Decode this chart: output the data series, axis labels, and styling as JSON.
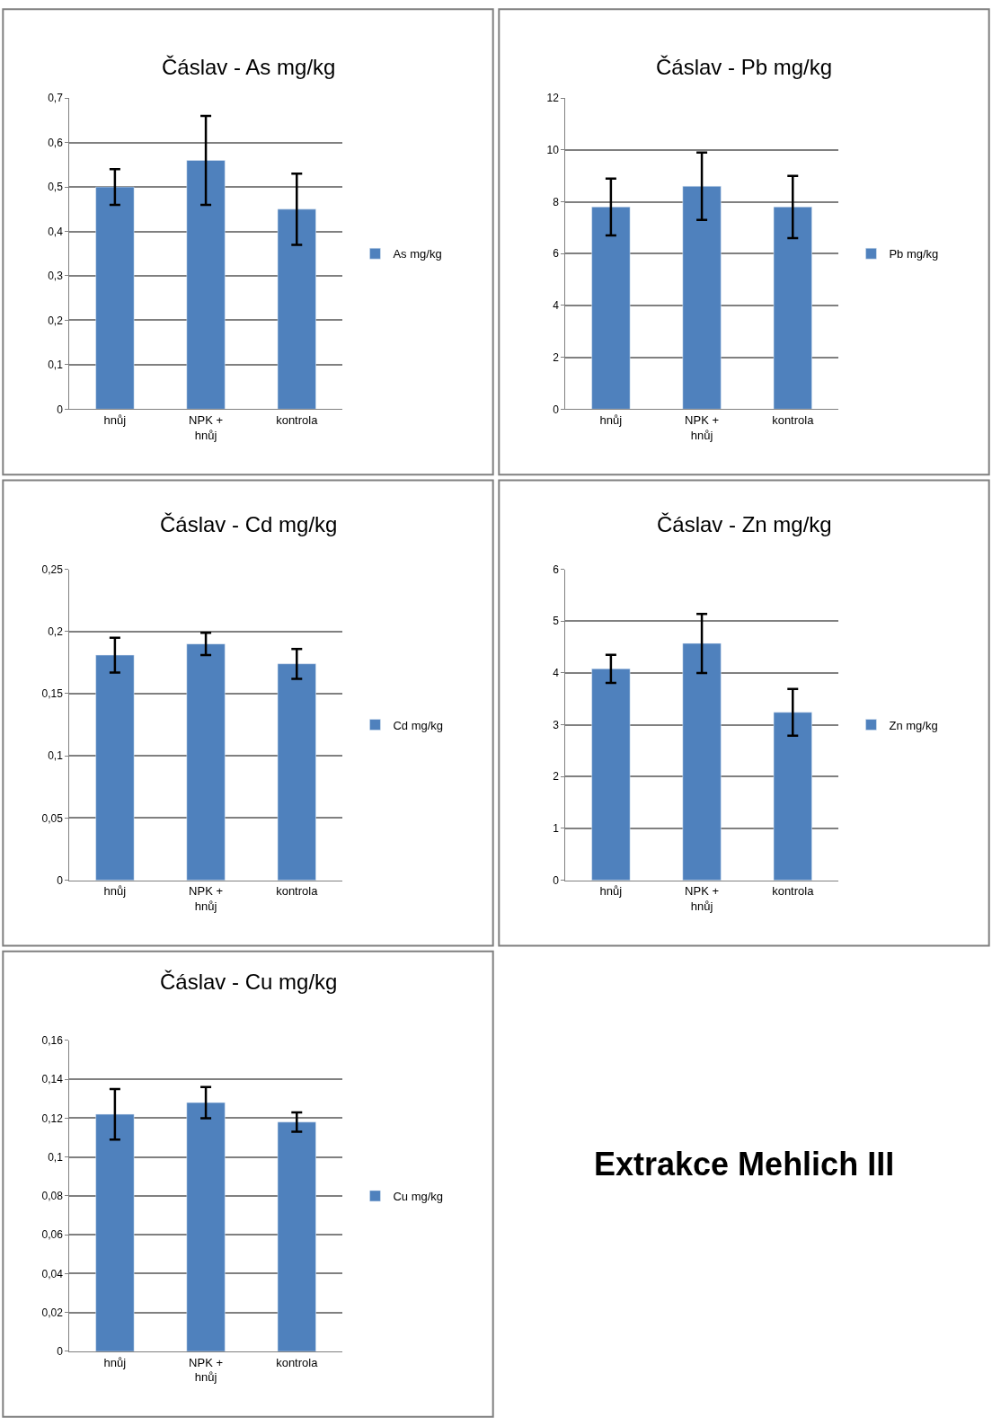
{
  "chart_data": [
    {
      "type": "bar",
      "title": "Čáslav - As mg/kg",
      "categories": [
        "hnůj",
        "NPK + hnůj",
        "kontrola"
      ],
      "series": [
        {
          "name": "As mg/kg",
          "color": "#4f81bd",
          "values": [
            0.5,
            0.56,
            0.45
          ],
          "errors": [
            0.04,
            0.1,
            0.08
          ]
        }
      ],
      "ylim": [
        0,
        0.7
      ],
      "yticks": [
        0,
        {
          "value": 0.1,
          "label": "0,1"
        },
        {
          "value": 0.2,
          "label": "0,2"
        },
        {
          "value": 0.3,
          "label": "0,3"
        },
        {
          "value": 0.4,
          "label": "0,4"
        },
        {
          "value": 0.5,
          "label": "0,5"
        },
        {
          "value": 0.6,
          "label": "0,6"
        },
        {
          "value": 0.7,
          "label": "0,7"
        }
      ],
      "grid": "y",
      "legend": "right"
    },
    {
      "type": "bar",
      "title": "Čáslav - Pb mg/kg",
      "categories": [
        "hnůj",
        "NPK + hnůj",
        "kontrola"
      ],
      "series": [
        {
          "name": "Pb mg/kg",
          "color": "#4f81bd",
          "values": [
            7.8,
            8.6,
            7.8
          ],
          "errors": [
            1.1,
            1.3,
            1.2
          ]
        }
      ],
      "ylim": [
        0,
        12
      ],
      "yticks": [
        0,
        2,
        4,
        6,
        8,
        10,
        12
      ],
      "grid": "y",
      "legend": "right"
    },
    {
      "type": "bar",
      "title": "Čáslav - Cd mg/kg",
      "categories": [
        "hnůj",
        "NPK + hnůj",
        "kontrola"
      ],
      "series": [
        {
          "name": "Cd mg/kg",
          "color": "#4f81bd",
          "values": [
            0.181,
            0.19,
            0.174
          ],
          "errors": [
            0.014,
            0.009,
            0.012
          ]
        }
      ],
      "ylim": [
        0,
        0.25
      ],
      "yticks": [
        0,
        {
          "value": 0.05,
          "label": "0,05"
        },
        {
          "value": 0.1,
          "label": "0,1"
        },
        {
          "value": 0.15,
          "label": "0,15"
        },
        {
          "value": 0.2,
          "label": "0,2"
        },
        {
          "value": 0.25,
          "label": "0,25"
        }
      ],
      "grid": "y",
      "legend": "right"
    },
    {
      "type": "bar",
      "title": "Čáslav - Zn mg/kg",
      "categories": [
        "hnůj",
        "NPK + hnůj",
        "kontrola"
      ],
      "series": [
        {
          "name": "Zn mg/kg",
          "color": "#4f81bd",
          "values": [
            4.08,
            4.57,
            3.24
          ],
          "errors": [
            0.27,
            0.57,
            0.45
          ]
        }
      ],
      "ylim": [
        0,
        6
      ],
      "yticks": [
        0,
        1,
        2,
        3,
        4,
        5,
        6
      ],
      "grid": "y",
      "legend": "right"
    },
    {
      "type": "bar",
      "title": "Čáslav - Cu mg/kg",
      "categories": [
        "hnůj",
        "NPK + hnůj",
        "kontrola"
      ],
      "series": [
        {
          "name": "Cu mg/kg",
          "color": "#4f81bd",
          "values": [
            0.122,
            0.128,
            0.118
          ],
          "errors": [
            0.013,
            0.008,
            0.005
          ]
        }
      ],
      "ylim": [
        0,
        0.16
      ],
      "yticks": [
        0,
        {
          "value": 0.02,
          "label": "0,02"
        },
        {
          "value": 0.04,
          "label": "0,04"
        },
        {
          "value": 0.06,
          "label": "0,06"
        },
        {
          "value": 0.08,
          "label": "0,08"
        },
        {
          "value": 0.1,
          "label": "0,1"
        },
        {
          "value": 0.12,
          "label": "0,12"
        },
        {
          "value": 0.14,
          "label": "0,14"
        },
        {
          "value": 0.16,
          "label": "0,16"
        }
      ],
      "grid": "y",
      "legend": "right"
    },
    {
      "type": "other",
      "title": "Extrakce Mehlich III"
    }
  ]
}
